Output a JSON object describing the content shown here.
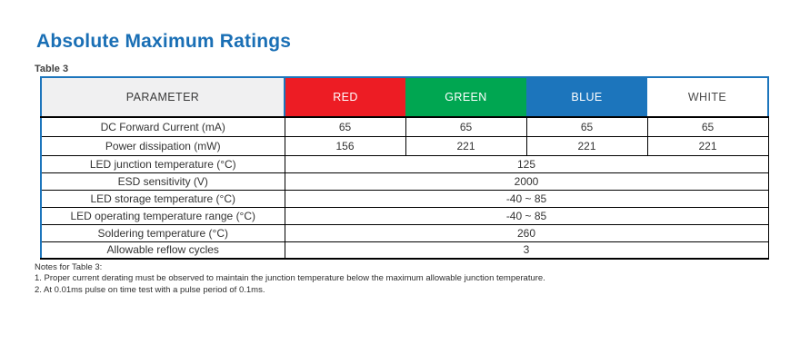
{
  "page": {
    "title": "Absolute Maximum Ratings",
    "table_label": "Table 3"
  },
  "colors": {
    "accent_blue": "#1C75BC",
    "title_blue": "#1A6FB5",
    "header_gray": "#F0F0F1",
    "red": "#ED1C24",
    "green": "#00A651",
    "blue": "#1C75BC",
    "grid_black": "#000000"
  },
  "table": {
    "columns": [
      {
        "label": "PARAMETER",
        "bg": "#F0F0F1",
        "fg": "#3A3A3A"
      },
      {
        "label": "RED",
        "bg": "#ED1C24",
        "fg": "#FFFFFF"
      },
      {
        "label": "GREEN",
        "bg": "#00A651",
        "fg": "#FFFFFF"
      },
      {
        "label": "BLUE",
        "bg": "#1C75BC",
        "fg": "#FFFFFF"
      },
      {
        "label": "WHITE",
        "bg": "#FFFFFF",
        "fg": "#4A4A4A"
      }
    ],
    "rows": [
      {
        "parameter": "DC Forward Current (mA)",
        "values": [
          "65",
          "65",
          "65",
          "65"
        ],
        "span": false
      },
      {
        "parameter": "Power dissipation (mW)",
        "values": [
          "156",
          "221",
          "221",
          "221"
        ],
        "span": false
      },
      {
        "parameter": "LED junction temperature (°C)",
        "values": [
          "125"
        ],
        "span": true
      },
      {
        "parameter": "ESD sensitivity (V)",
        "values": [
          "2000"
        ],
        "span": true
      },
      {
        "parameter": "LED storage temperature (°C)",
        "values": [
          "-40 ~ 85"
        ],
        "span": true
      },
      {
        "parameter": "LED operating temperature range (°C)",
        "values": [
          "-40 ~ 85"
        ],
        "span": true
      },
      {
        "parameter": "Soldering temperature (°C)",
        "values": [
          "260"
        ],
        "span": true
      },
      {
        "parameter": "Allowable reflow cycles",
        "values": [
          "3"
        ],
        "span": true
      }
    ]
  },
  "notes": {
    "heading": "Notes for Table 3:",
    "items": [
      "1.  Proper current derating must be observed to maintain the junction temperature below the maximum allowable junction temperature.",
      "2.  At 0.01ms pulse on time test with a pulse period of 0.1ms."
    ]
  }
}
